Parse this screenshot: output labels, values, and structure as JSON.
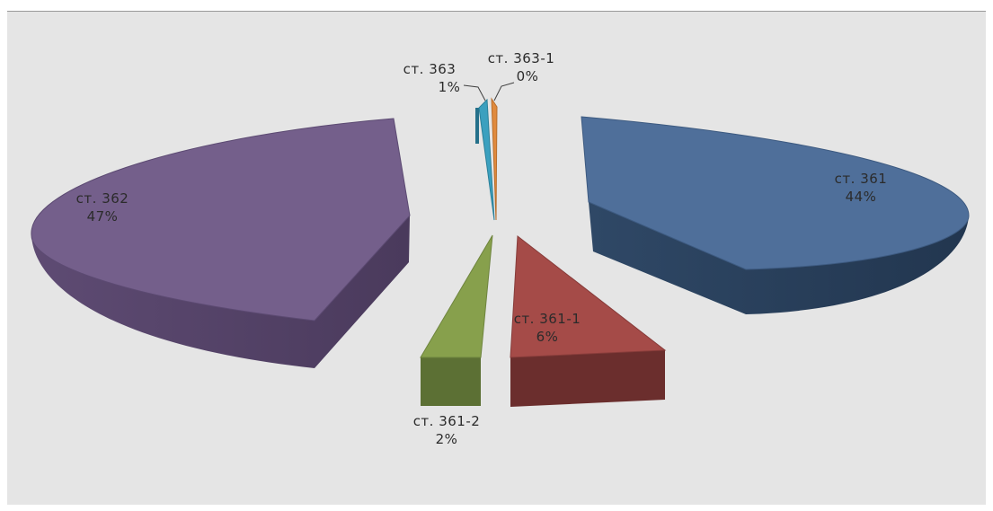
{
  "chart_data": {
    "type": "pie",
    "title": "",
    "three_d": true,
    "exploded": true,
    "slices": [
      {
        "label": "ст. 361",
        "percent_label": "44%",
        "value": 44,
        "color": "#4f6f9a"
      },
      {
        "label": "ст. 361-1",
        "percent_label": "6%",
        "value": 6,
        "color": "#a54b48"
      },
      {
        "label": "ст. 361-2",
        "percent_label": "2%",
        "value": 2,
        "color": "#87a04c"
      },
      {
        "label": "ст. 362",
        "percent_label": "47%",
        "value": 47,
        "color": "#745f8b"
      },
      {
        "label": "ст. 363",
        "percent_label": "1%",
        "value": 1,
        "color": "#3ba0bf"
      },
      {
        "label": "ст. 363-1",
        "percent_label": "0%",
        "value": 0,
        "color": "#e08a3d"
      }
    ]
  }
}
